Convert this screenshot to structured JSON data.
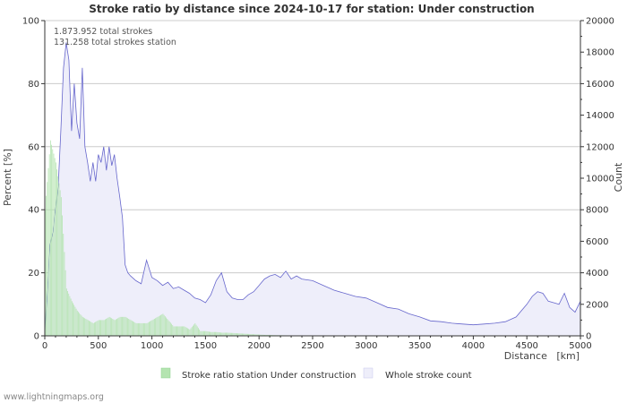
{
  "chart_data": {
    "type": "bar",
    "title": "Stroke ratio by distance since 2024-10-17 for station: Under construction",
    "xlabel": "Distance   [km]",
    "ylabel_left": "Percent   [%]",
    "ylabel_right": "Count",
    "xlim": [
      0,
      5000
    ],
    "ylim_left": [
      0,
      100
    ],
    "ylim_right": [
      0,
      20000
    ],
    "x_ticks": [
      0,
      500,
      1000,
      1500,
      2000,
      2500,
      3000,
      3500,
      4000,
      4500,
      5000
    ],
    "y_left_ticks": [
      0,
      20,
      40,
      60,
      80,
      100
    ],
    "y_right_ticks": [
      0,
      2000,
      4000,
      6000,
      8000,
      10000,
      12000,
      14000,
      16000,
      18000,
      20000
    ],
    "grid": true,
    "legend_position": "bottom",
    "annotations": [
      "1.873.952 total strokes",
      "131.258 total strokes station"
    ],
    "series": [
      {
        "name": "Stroke ratio station Under construction",
        "kind": "bar",
        "axis": "left",
        "color": "#8fd18f",
        "fill": "#b4e4b0",
        "x": [
          0,
          50,
          100,
          150,
          200,
          250,
          300,
          350,
          400,
          450,
          500,
          550,
          600,
          650,
          700,
          750,
          800,
          850,
          900,
          950,
          1000,
          1050,
          1100,
          1150,
          1200,
          1250,
          1300,
          1350,
          1400,
          1450,
          1500,
          1550,
          1600,
          1650,
          1700,
          1750,
          1800,
          1850,
          1900,
          1950,
          2000,
          2050,
          2100,
          2150,
          2200,
          2300,
          2400,
          2500,
          2600,
          2700,
          2800,
          2900,
          3000,
          3500,
          4000,
          4500,
          5000
        ],
        "values": [
          40,
          62,
          55,
          44,
          15,
          11,
          8,
          6,
          5,
          4,
          5,
          5,
          6,
          5,
          6,
          6,
          5,
          4,
          4,
          4,
          5,
          6,
          7,
          5,
          3,
          3,
          3,
          2,
          4,
          1.5,
          1.5,
          1.2,
          1.2,
          1.0,
          1.0,
          0.9,
          0.8,
          0.7,
          0.6,
          0.5,
          0.4,
          0.3,
          0.3,
          0.2,
          0.2,
          0.1,
          0.1,
          0.1,
          0.1,
          0.05,
          0.05,
          0.05,
          0.05,
          0,
          0,
          0,
          0
        ]
      },
      {
        "name": "Whole stroke count",
        "kind": "area",
        "axis": "right",
        "color": "#6666cc",
        "fill": "#eeeefa",
        "x": [
          0,
          25,
          50,
          75,
          100,
          125,
          150,
          175,
          200,
          225,
          250,
          275,
          300,
          325,
          350,
          375,
          400,
          425,
          450,
          475,
          500,
          525,
          550,
          575,
          600,
          625,
          650,
          675,
          700,
          725,
          750,
          775,
          800,
          850,
          900,
          950,
          1000,
          1050,
          1100,
          1150,
          1200,
          1250,
          1300,
          1350,
          1400,
          1450,
          1500,
          1550,
          1600,
          1650,
          1700,
          1750,
          1800,
          1850,
          1900,
          1950,
          2000,
          2050,
          2100,
          2150,
          2200,
          2250,
          2300,
          2350,
          2400,
          2500,
          2600,
          2700,
          2800,
          2900,
          3000,
          3100,
          3200,
          3300,
          3400,
          3500,
          3600,
          3700,
          3800,
          3900,
          4000,
          4100,
          4200,
          4300,
          4400,
          4500,
          4550,
          4600,
          4650,
          4700,
          4750,
          4800,
          4850,
          4900,
          4950,
          5000
        ],
        "values": [
          300,
          3000,
          5800,
          6600,
          8000,
          9500,
          13000,
          17000,
          18600,
          17500,
          13000,
          16000,
          13500,
          12500,
          17000,
          12000,
          11000,
          9800,
          11000,
          9800,
          11500,
          11000,
          12000,
          10500,
          12000,
          10800,
          11500,
          10000,
          8800,
          7500,
          4500,
          4000,
          3800,
          3500,
          3300,
          4800,
          3700,
          3500,
          3200,
          3400,
          3000,
          3100,
          2900,
          2700,
          2400,
          2300,
          2100,
          2600,
          3500,
          4000,
          2800,
          2400,
          2300,
          2300,
          2600,
          2800,
          3200,
          3600,
          3800,
          3900,
          3700,
          4100,
          3600,
          3800,
          3600,
          3500,
          3200,
          2900,
          2700,
          2500,
          2400,
          2100,
          1800,
          1700,
          1400,
          1200,
          950,
          900,
          800,
          750,
          700,
          750,
          800,
          900,
          1200,
          2000,
          2500,
          2800,
          2700,
          2200,
          2100,
          2000,
          2700,
          1800,
          1500,
          2200
        ]
      }
    ]
  },
  "footer": "www.lightningmaps.org"
}
